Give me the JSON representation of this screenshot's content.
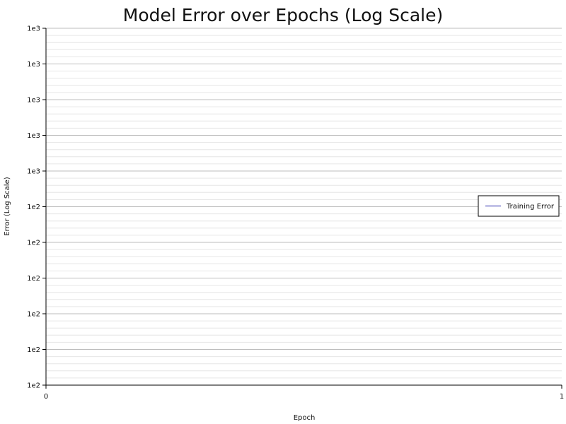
{
  "chart_data": {
    "type": "line",
    "title": "Model Error over Epochs (Log Scale)",
    "xlabel": "Epoch",
    "ylabel": "Error (Log Scale)",
    "x_ticks": [
      "0",
      "1"
    ],
    "xlim": [
      0,
      1
    ],
    "y_ticks": [
      "1e2",
      "1e2",
      "1e2",
      "1e2",
      "1e2",
      "1e2",
      "1e3",
      "1e3",
      "1e3",
      "1e3",
      "1e3"
    ],
    "y_scale": "log",
    "grid": true,
    "legend_position": "right",
    "series": [
      {
        "name": "Training Error",
        "color": "#1a1aa6",
        "x": [],
        "y": []
      }
    ]
  }
}
